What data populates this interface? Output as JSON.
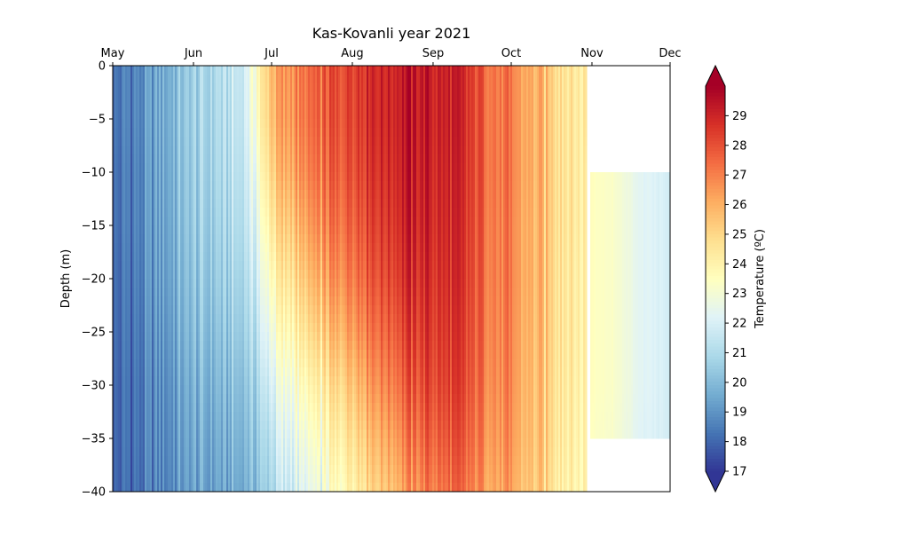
{
  "chart_data": {
    "type": "heatmap",
    "title": "Kas-Kovanli year 2021",
    "ylabel": "Depth (m)",
    "colorbar_label": "Temperature (ºC)",
    "x_ticks": [
      "May",
      "Jun",
      "Jul",
      "Aug",
      "Sep",
      "Oct",
      "Nov",
      "Dec"
    ],
    "x_tick_dates": [
      "2021-05-01",
      "2021-06-01",
      "2021-07-01",
      "2021-08-01",
      "2021-09-01",
      "2021-10-01",
      "2021-11-01",
      "2021-12-01"
    ],
    "xlim": [
      "2021-05-01",
      "2021-12-01"
    ],
    "y_ticks": [
      0,
      -5,
      -10,
      -15,
      -20,
      -25,
      -30,
      -35,
      -40
    ],
    "ylim": [
      -40,
      0
    ],
    "colorbar_ticks": [
      17,
      18,
      19,
      20,
      21,
      22,
      23,
      24,
      25,
      26,
      27,
      28,
      29
    ],
    "clim": [
      17,
      30
    ],
    "colormap": "RdYlBu_r",
    "colorbar_extend": "both",
    "depths": [
      0,
      -5,
      -10,
      -15,
      -20,
      -25,
      -30,
      -35,
      -40
    ],
    "temperature_profiles": [
      {
        "date": "2021-05-01",
        "values": [
          18.3,
          18.3,
          18.2,
          18.2,
          18.1,
          18.1,
          18.0,
          18.0,
          18.0
        ]
      },
      {
        "date": "2021-05-10",
        "values": [
          18.6,
          18.6,
          18.5,
          18.5,
          18.4,
          18.3,
          18.2,
          18.2,
          18.1
        ]
      },
      {
        "date": "2021-05-20",
        "values": [
          19.5,
          19.5,
          19.4,
          19.3,
          19.2,
          19.0,
          18.8,
          18.7,
          18.6
        ]
      },
      {
        "date": "2021-06-01",
        "values": [
          20.6,
          20.6,
          20.5,
          20.4,
          20.2,
          20.0,
          19.7,
          19.5,
          19.3
        ]
      },
      {
        "date": "2021-06-10",
        "values": [
          21.0,
          20.9,
          20.8,
          20.6,
          20.4,
          20.1,
          19.8,
          19.5,
          19.3
        ]
      },
      {
        "date": "2021-06-20",
        "values": [
          21.8,
          21.7,
          21.5,
          21.3,
          21.0,
          20.7,
          20.3,
          20.0,
          19.7
        ]
      },
      {
        "date": "2021-06-25",
        "values": [
          23.5,
          23.3,
          22.8,
          22.3,
          21.8,
          21.3,
          20.8,
          20.4,
          20.1
        ]
      },
      {
        "date": "2021-07-01",
        "values": [
          26.0,
          25.8,
          25.3,
          24.6,
          23.8,
          23.0,
          22.2,
          21.5,
          21.0
        ]
      },
      {
        "date": "2021-07-10",
        "values": [
          27.0,
          26.9,
          26.5,
          25.8,
          25.0,
          24.2,
          23.3,
          22.6,
          22.0
        ]
      },
      {
        "date": "2021-07-20",
        "values": [
          27.5,
          27.4,
          27.1,
          26.6,
          25.9,
          25.0,
          24.0,
          23.2,
          22.5
        ]
      },
      {
        "date": "2021-08-01",
        "values": [
          28.6,
          28.5,
          28.3,
          27.9,
          27.4,
          26.7,
          25.8,
          25.0,
          24.3
        ]
      },
      {
        "date": "2021-08-10",
        "values": [
          29.0,
          29.0,
          28.8,
          28.5,
          28.1,
          27.5,
          26.8,
          26.0,
          25.3
        ]
      },
      {
        "date": "2021-08-20",
        "values": [
          29.3,
          29.3,
          29.2,
          29.0,
          28.7,
          28.2,
          27.6,
          26.9,
          26.2
        ]
      },
      {
        "date": "2021-09-01",
        "values": [
          29.2,
          29.2,
          29.1,
          29.0,
          28.8,
          28.6,
          28.3,
          27.8,
          27.2
        ]
      },
      {
        "date": "2021-09-10",
        "values": [
          28.8,
          28.8,
          28.7,
          28.6,
          28.5,
          28.3,
          28.1,
          27.7,
          27.2
        ]
      },
      {
        "date": "2021-09-20",
        "values": [
          27.9,
          27.9,
          27.9,
          27.8,
          27.7,
          27.6,
          27.4,
          27.1,
          26.7
        ]
      },
      {
        "date": "2021-10-01",
        "values": [
          26.8,
          26.8,
          26.8,
          26.7,
          26.7,
          26.6,
          26.5,
          26.3,
          26.0
        ]
      },
      {
        "date": "2021-10-10",
        "values": [
          26.0,
          26.0,
          26.0,
          25.9,
          25.9,
          25.8,
          25.7,
          25.6,
          25.4
        ]
      },
      {
        "date": "2021-10-20",
        "values": [
          25.0,
          25.0,
          25.0,
          25.0,
          24.9,
          24.9,
          24.8,
          24.7,
          24.5
        ]
      },
      {
        "date": "2021-10-28",
        "values": [
          24.2,
          24.2,
          24.2,
          24.2,
          24.1,
          24.1,
          24.0,
          23.9,
          23.8
        ]
      },
      {
        "date": "2021-11-01",
        "values": [
          null,
          null,
          23.6,
          23.6,
          23.6,
          23.6,
          23.6,
          23.5,
          null
        ]
      },
      {
        "date": "2021-11-10",
        "values": [
          null,
          null,
          23.2,
          23.2,
          23.2,
          23.2,
          23.2,
          23.1,
          null
        ]
      },
      {
        "date": "2021-11-20",
        "values": [
          null,
          null,
          22.3,
          22.3,
          22.3,
          22.3,
          22.3,
          22.2,
          null
        ]
      },
      {
        "date": "2021-12-01",
        "values": [
          null,
          null,
          21.9,
          21.9,
          21.9,
          21.9,
          21.9,
          21.9,
          null
        ]
      }
    ],
    "grid": false
  }
}
